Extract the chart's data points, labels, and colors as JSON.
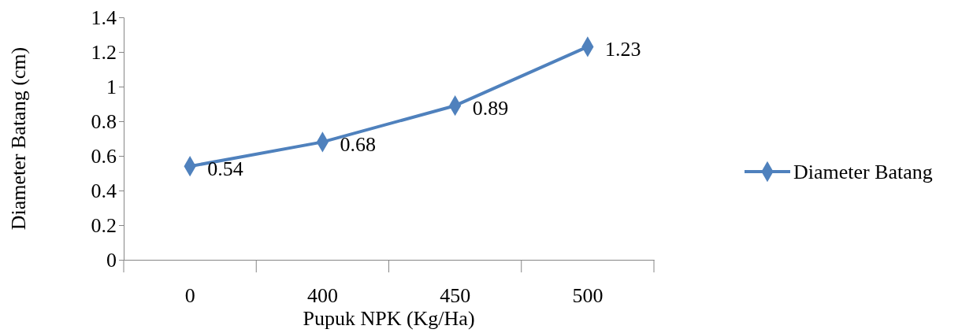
{
  "chart_data": {
    "type": "line",
    "xlabel": "Pupuk NPK (Kg/Ha)",
    "ylabel": "Diameter Batang (cm)",
    "categories": [
      "0",
      "400",
      "450",
      "500"
    ],
    "series": [
      {
        "name": "Diameter Batang",
        "color": "#4f81bd",
        "values": [
          0.54,
          0.68,
          0.89,
          1.23
        ]
      }
    ],
    "ylim": [
      0,
      1.4
    ],
    "yticks": [
      0,
      0.2,
      0.4,
      0.6,
      0.8,
      1,
      1.2,
      1.4
    ],
    "grid": false,
    "legend": "right",
    "marker": "diamond",
    "line_style": "solid",
    "data_labels": true
  }
}
